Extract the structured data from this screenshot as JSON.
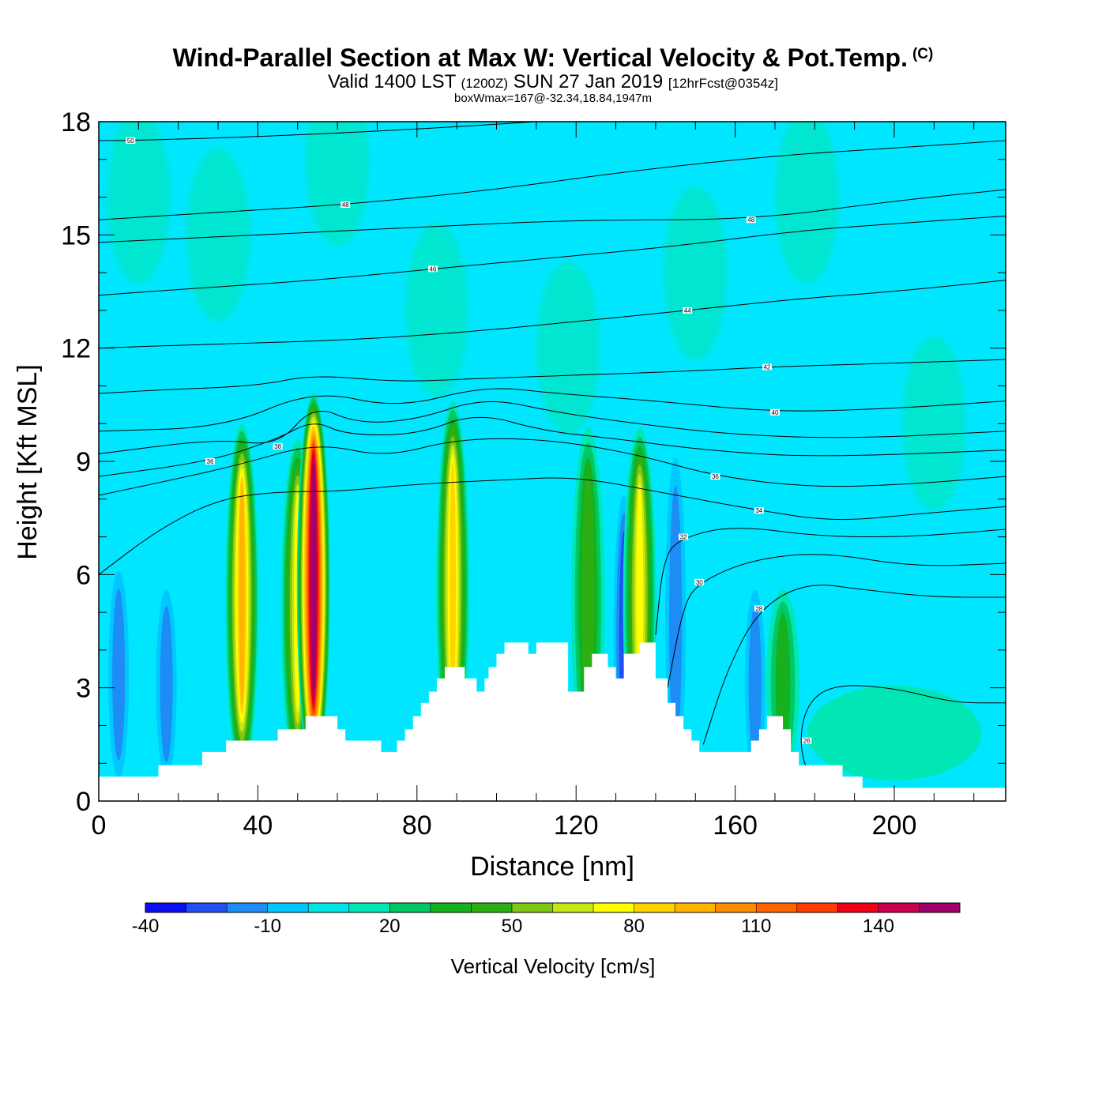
{
  "header": {
    "title": "Wind-Parallel Section at Max W: Vertical Velocity & Pot.Temp.",
    "copyright": "(C)",
    "valid_main": "Valid 1400 LST",
    "valid_utc": "(1200Z)",
    "valid_date": "SUN 27 Jan 2019",
    "forecast": "[12hrFcst@0354z]",
    "box_info": "boxWmax=167@-32.34,18.84,1947m"
  },
  "chart_data": {
    "type": "heatmap",
    "xlabel": "Distance [nm]",
    "ylabel": "Height [Kft MSL]",
    "xlim": [
      0,
      228
    ],
    "ylim": [
      0,
      18
    ],
    "x_ticks": [
      "0",
      "40",
      "80",
      "120",
      "160",
      "200"
    ],
    "y_ticks": [
      "0",
      "3",
      "6",
      "9",
      "12",
      "15",
      "18"
    ],
    "x_tick_values": [
      0,
      40,
      80,
      120,
      160,
      200
    ],
    "y_tick_values": [
      0,
      3,
      6,
      9,
      12,
      15,
      18
    ],
    "colorbar": {
      "title": "Vertical Velocity [cm/s]",
      "tick_labels": [
        "-40",
        "-10",
        "20",
        "50",
        "80",
        "110",
        "140"
      ],
      "tick_values": [
        -40,
        -10,
        20,
        50,
        80,
        110,
        140
      ],
      "levels_min": -40,
      "levels_step": 10,
      "colors": [
        "#0a0ef0",
        "#1e50f5",
        "#1e8cf5",
        "#00c8ff",
        "#00e6e6",
        "#00e6b4",
        "#00c864",
        "#16b21e",
        "#2daf14",
        "#7dc814",
        "#c8e614",
        "#ffff00",
        "#ffd200",
        "#ffb400",
        "#ff8c00",
        "#ff6400",
        "#ff3c00",
        "#f00014",
        "#c80050",
        "#a0006e"
      ]
    },
    "background_color": "#00e6ff",
    "updraft_cores": [
      {
        "x": 36,
        "top": 9.4,
        "peak": 90
      },
      {
        "x": 50,
        "top": 9.0,
        "peak": 70
      },
      {
        "x": 54,
        "top": 10.2,
        "peak": 167
      },
      {
        "x": 89,
        "top": 10.0,
        "peak": 85
      },
      {
        "x": 123,
        "top": 9.3,
        "peak": 45
      },
      {
        "x": 136,
        "top": 9.3,
        "peak": 75
      },
      {
        "x": 172,
        "top": 5.0,
        "peak": 35
      }
    ],
    "downdraft_cores": [
      {
        "x": 5,
        "top": 5.5,
        "min": -25
      },
      {
        "x": 17,
        "top": 5.0,
        "min": -25
      },
      {
        "x": 132,
        "top": 7.5,
        "min": -30
      },
      {
        "x": 145,
        "top": 8.5,
        "min": -20
      },
      {
        "x": 165,
        "top": 5.0,
        "min": -20
      }
    ],
    "terrain": [
      [
        0,
        0.65
      ],
      [
        15,
        0.65
      ],
      [
        15,
        0.95
      ],
      [
        26,
        0.95
      ],
      [
        26,
        1.3
      ],
      [
        32,
        1.3
      ],
      [
        32,
        1.6
      ],
      [
        45,
        1.6
      ],
      [
        45,
        1.9
      ],
      [
        52,
        1.9
      ],
      [
        52,
        2.25
      ],
      [
        60,
        2.25
      ],
      [
        60,
        1.9
      ],
      [
        62,
        1.9
      ],
      [
        62,
        1.6
      ],
      [
        71,
        1.6
      ],
      [
        71,
        1.3
      ],
      [
        75,
        1.3
      ],
      [
        75,
        1.6
      ],
      [
        77,
        1.6
      ],
      [
        77,
        1.9
      ],
      [
        79,
        1.9
      ],
      [
        79,
        2.25
      ],
      [
        81,
        2.25
      ],
      [
        81,
        2.6
      ],
      [
        83,
        2.6
      ],
      [
        83,
        2.9
      ],
      [
        85,
        2.9
      ],
      [
        85,
        3.25
      ],
      [
        87,
        3.25
      ],
      [
        87,
        3.55
      ],
      [
        92,
        3.55
      ],
      [
        92,
        3.25
      ],
      [
        95,
        3.25
      ],
      [
        95,
        2.9
      ],
      [
        97,
        2.9
      ],
      [
        97,
        3.25
      ],
      [
        98,
        3.25
      ],
      [
        98,
        3.55
      ],
      [
        100,
        3.55
      ],
      [
        100,
        3.9
      ],
      [
        102,
        3.9
      ],
      [
        102,
        4.2
      ],
      [
        108,
        4.2
      ],
      [
        108,
        3.9
      ],
      [
        110,
        3.9
      ],
      [
        110,
        4.2
      ],
      [
        118,
        4.2
      ],
      [
        118,
        2.9
      ],
      [
        122,
        2.9
      ],
      [
        122,
        3.55
      ],
      [
        124,
        3.55
      ],
      [
        124,
        3.9
      ],
      [
        128,
        3.9
      ],
      [
        128,
        3.55
      ],
      [
        130,
        3.55
      ],
      [
        130,
        3.25
      ],
      [
        132,
        3.25
      ],
      [
        132,
        3.9
      ],
      [
        136,
        3.9
      ],
      [
        136,
        4.2
      ],
      [
        140,
        4.2
      ],
      [
        140,
        3.25
      ],
      [
        143,
        3.25
      ],
      [
        143,
        2.6
      ],
      [
        145,
        2.6
      ],
      [
        145,
        2.25
      ],
      [
        147,
        2.25
      ],
      [
        147,
        1.9
      ],
      [
        149,
        1.9
      ],
      [
        149,
        1.6
      ],
      [
        151,
        1.6
      ],
      [
        151,
        1.3
      ],
      [
        164,
        1.3
      ],
      [
        164,
        1.6
      ],
      [
        166,
        1.6
      ],
      [
        166,
        1.9
      ],
      [
        168,
        1.9
      ],
      [
        168,
        2.25
      ],
      [
        172,
        2.25
      ],
      [
        172,
        1.9
      ],
      [
        174,
        1.9
      ],
      [
        174,
        1.3
      ],
      [
        176,
        1.3
      ],
      [
        176,
        0.95
      ],
      [
        187,
        0.95
      ],
      [
        187,
        0.65
      ],
      [
        192,
        0.65
      ],
      [
        192,
        0.35
      ],
      [
        228,
        0.35
      ]
    ],
    "theta_contours": [
      {
        "label": "26",
        "lx": 178,
        "ly": 1.6,
        "pts": [
          [
            179,
            0.5
          ],
          [
            176,
            1.5
          ],
          [
            178,
            2.6
          ],
          [
            185,
            3.1
          ],
          [
            200,
            3.0
          ],
          [
            215,
            2.6
          ],
          [
            228,
            2.6
          ]
        ]
      },
      {
        "label": "28",
        "lx": 166,
        "ly": 5.1,
        "pts": [
          [
            152,
            1.5
          ],
          [
            158,
            3.5
          ],
          [
            166,
            5.1
          ],
          [
            178,
            5.8
          ],
          [
            192,
            5.6
          ],
          [
            210,
            5.4
          ],
          [
            228,
            5.4
          ]
        ]
      },
      {
        "label": "30",
        "lx": 151,
        "ly": 5.8,
        "pts": [
          [
            143,
            3.0
          ],
          [
            147,
            5.2
          ],
          [
            151,
            5.8
          ],
          [
            164,
            6.4
          ],
          [
            182,
            6.6
          ],
          [
            205,
            6.2
          ],
          [
            228,
            6.3
          ]
        ]
      },
      {
        "label": "32",
        "lx": 147,
        "ly": 7.0,
        "pts": [
          [
            140,
            4.4
          ],
          [
            142,
            6.5
          ],
          [
            147,
            7.0
          ],
          [
            160,
            7.3
          ],
          [
            182,
            7.0
          ],
          [
            205,
            7.0
          ],
          [
            228,
            7.2
          ]
        ]
      },
      {
        "label": "34",
        "lx": 166,
        "ly": 7.7,
        "pts": [
          [
            0,
            6.0
          ],
          [
            15,
            7.2
          ],
          [
            30,
            8.0
          ],
          [
            45,
            8.2
          ],
          [
            60,
            8.2
          ],
          [
            80,
            8.4
          ],
          [
            100,
            8.5
          ],
          [
            120,
            8.6
          ],
          [
            140,
            8.2
          ],
          [
            166,
            7.7
          ],
          [
            185,
            7.4
          ],
          [
            205,
            7.6
          ],
          [
            228,
            7.8
          ]
        ]
      },
      {
        "label": "36",
        "lx": 155,
        "ly": 8.6,
        "pts": [
          [
            0,
            8.1
          ],
          [
            18,
            8.5
          ],
          [
            35,
            8.9
          ],
          [
            55,
            9.5
          ],
          [
            72,
            9.1
          ],
          [
            90,
            9.6
          ],
          [
            112,
            9.6
          ],
          [
            135,
            9.2
          ],
          [
            155,
            8.6
          ],
          [
            180,
            8.3
          ],
          [
            205,
            8.4
          ],
          [
            228,
            8.6
          ]
        ]
      },
      {
        "label": "36",
        "lx": 28,
        "ly": 9.0,
        "pts": [
          [
            0,
            8.6
          ],
          [
            28,
            9.0
          ],
          [
            45,
            9.6
          ],
          [
            54,
            10.1
          ],
          [
            62,
            9.7
          ],
          [
            80,
            9.7
          ],
          [
            95,
            10.3
          ],
          [
            112,
            9.8
          ],
          [
            130,
            9.6
          ],
          [
            152,
            9.3
          ],
          [
            180,
            9.1
          ],
          [
            228,
            9.3
          ]
        ]
      },
      {
        "label": "38",
        "lx": 45,
        "ly": 9.4,
        "pts": [
          [
            0,
            9.2
          ],
          [
            30,
            9.6
          ],
          [
            45,
            9.4
          ],
          [
            54,
            10.5
          ],
          [
            65,
            10.0
          ],
          [
            80,
            10.1
          ],
          [
            97,
            10.7
          ],
          [
            115,
            10.3
          ],
          [
            135,
            10.0
          ],
          [
            160,
            9.7
          ],
          [
            190,
            9.6
          ],
          [
            228,
            9.8
          ]
        ]
      },
      {
        "label": "40",
        "lx": 170,
        "ly": 10.3,
        "pts": [
          [
            0,
            9.8
          ],
          [
            32,
            9.9
          ],
          [
            54,
            10.9
          ],
          [
            75,
            10.4
          ],
          [
            97,
            11.0
          ],
          [
            115,
            10.8
          ],
          [
            140,
            10.6
          ],
          [
            170,
            10.3
          ],
          [
            200,
            10.4
          ],
          [
            228,
            10.6
          ]
        ]
      },
      {
        "label": "42",
        "lx": 168,
        "ly": 11.5,
        "pts": [
          [
            0,
            10.8
          ],
          [
            17,
            10.9
          ],
          [
            40,
            11.0
          ],
          [
            54,
            11.3
          ],
          [
            75,
            11.1
          ],
          [
            97,
            11.2
          ],
          [
            125,
            11.3
          ],
          [
            150,
            11.4
          ],
          [
            168,
            11.5
          ],
          [
            200,
            11.6
          ],
          [
            228,
            11.7
          ]
        ]
      },
      {
        "label": "44",
        "lx": 148,
        "ly": 13.0,
        "pts": [
          [
            0,
            12.0
          ],
          [
            26,
            12.1
          ],
          [
            60,
            12.2
          ],
          [
            90,
            12.4
          ],
          [
            120,
            12.7
          ],
          [
            148,
            13.0
          ],
          [
            175,
            13.3
          ],
          [
            200,
            13.5
          ],
          [
            228,
            13.8
          ]
        ]
      },
      {
        "label": "46",
        "lx": 84,
        "ly": 14.1,
        "pts": [
          [
            0,
            13.4
          ],
          [
            26,
            13.6
          ],
          [
            55,
            13.8
          ],
          [
            84,
            14.1
          ],
          [
            115,
            14.4
          ],
          [
            145,
            14.7
          ],
          [
            175,
            15.1
          ],
          [
            200,
            15.3
          ],
          [
            228,
            15.5
          ]
        ]
      },
      {
        "label": "48",
        "lx": 164,
        "ly": 15.4,
        "pts": [
          [
            0,
            14.8
          ],
          [
            40,
            15.0
          ],
          [
            80,
            15.2
          ],
          [
            120,
            15.4
          ],
          [
            164,
            15.4
          ],
          [
            200,
            15.9
          ],
          [
            228,
            16.2
          ]
        ]
      },
      {
        "label": "48",
        "lx": 62,
        "ly": 15.8,
        "pts": [
          [
            0,
            15.4
          ],
          [
            30,
            15.6
          ],
          [
            62,
            15.8
          ],
          [
            100,
            16.2
          ],
          [
            134,
            16.7
          ],
          [
            170,
            17.1
          ],
          [
            200,
            17.3
          ],
          [
            228,
            17.5
          ]
        ]
      },
      {
        "label": "50",
        "lx": 8,
        "ly": 17.5,
        "pts": [
          [
            0,
            17.5
          ],
          [
            8,
            17.5
          ],
          [
            40,
            17.6
          ],
          [
            80,
            17.8
          ],
          [
            110,
            18.0
          ]
        ]
      }
    ]
  }
}
